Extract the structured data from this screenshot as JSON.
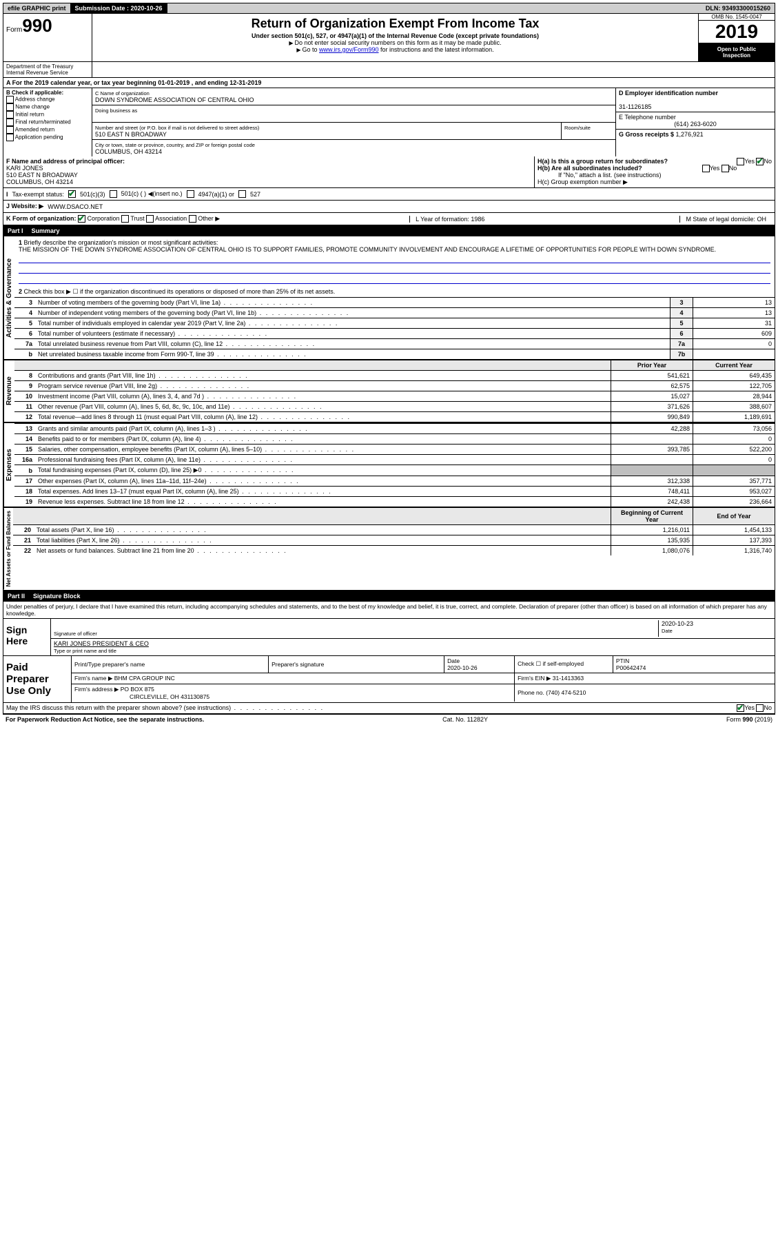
{
  "topbar": {
    "efile": "efile GRAPHIC print",
    "submission_label": "Submission Date : 2020-10-26",
    "dln": "DLN: 93493300015260"
  },
  "header": {
    "form_prefix": "Form",
    "form_number": "990",
    "title": "Return of Organization Exempt From Income Tax",
    "subtitle": "Under section 501(c), 527, or 4947(a)(1) of the Internal Revenue Code (except private foundations)",
    "note1": "Do not enter social security numbers on this form as it may be made public.",
    "note2_pre": "Go to ",
    "note2_link": "www.irs.gov/Form990",
    "note2_post": " for instructions and the latest information.",
    "omb": "OMB No. 1545-0047",
    "year": "2019",
    "inspect1": "Open to Public",
    "inspect2": "Inspection",
    "dept1": "Department of the Treasury",
    "dept2": "Internal Revenue Service"
  },
  "lineA": "For the 2019 calendar year, or tax year beginning 01-01-2019   , and ending 12-31-2019",
  "sectionB": {
    "title": "B Check if applicable:",
    "items": [
      "Address change",
      "Name change",
      "Initial return",
      "Final return/terminated",
      "Amended return",
      "Application pending"
    ]
  },
  "sectionC": {
    "name_label": "C Name of organization",
    "name": "DOWN SYNDROME ASSOCIATION OF CENTRAL OHIO",
    "dba_label": "Doing business as",
    "addr_label": "Number and street (or P.O. box if mail is not delivered to street address)",
    "room_label": "Room/suite",
    "addr": "510 EAST N BROADWAY",
    "city_label": "City or town, state or province, country, and ZIP or foreign postal code",
    "city": "COLUMBUS, OH  43214"
  },
  "sectionD": {
    "label": "D Employer identification number",
    "ein": "31-1126185",
    "phone_label": "E Telephone number",
    "phone": "(614) 263-6020",
    "gross_label": "G Gross receipts $ ",
    "gross": "1,276,921"
  },
  "sectionF": {
    "label": "F  Name and address of principal officer:",
    "name": "KARI JONES",
    "addr1": "510 EAST N BROADWAY",
    "addr2": "COLUMBUS, OH  43214"
  },
  "sectionH": {
    "ha": "H(a)  Is this a group return for subordinates?",
    "hb": "H(b)  Are all subordinates included?",
    "hb_note": "If \"No,\" attach a list. (see instructions)",
    "hc": "H(c)  Group exemption number ▶",
    "yes": "Yes",
    "no": "No"
  },
  "taxExempt": {
    "label": "Tax-exempt status:",
    "opt1": "501(c)(3)",
    "opt2": "501(c) (  ) ◀(insert no.)",
    "opt3": "4947(a)(1) or",
    "opt4": "527"
  },
  "sectionJ": {
    "label": "J  Website: ▶",
    "value": "WWW.DSACO.NET"
  },
  "sectionK": {
    "label": "K Form of organization:",
    "opts": [
      "Corporation",
      "Trust",
      "Association",
      "Other ▶"
    ],
    "L": "L Year of formation: 1986",
    "M": "M State of legal domicile: OH"
  },
  "part1": {
    "label": "Part I",
    "title": "Summary"
  },
  "governance": {
    "vert": "Activities & Governance",
    "l1": "Briefly describe the organization's mission or most significant activities:",
    "mission": "THE MISSION OF THE DOWN SYNDROME ASSOCIATION OF CENTRAL OHIO IS TO SUPPORT FAMILIES, PROMOTE COMMUNITY INVOLVEMENT AND ENCOURAGE A LIFETIME OF OPPORTUNITIES FOR PEOPLE WITH DOWN SYNDROME.",
    "l2": "Check this box ▶ ☐  if the organization discontinued its operations or disposed of more than 25% of its net assets.",
    "rows": [
      {
        "n": "3",
        "t": "Number of voting members of the governing body (Part VI, line 1a)",
        "b": "3",
        "v": "13"
      },
      {
        "n": "4",
        "t": "Number of independent voting members of the governing body (Part VI, line 1b)",
        "b": "4",
        "v": "13"
      },
      {
        "n": "5",
        "t": "Total number of individuals employed in calendar year 2019 (Part V, line 2a)",
        "b": "5",
        "v": "31"
      },
      {
        "n": "6",
        "t": "Total number of volunteers (estimate if necessary)",
        "b": "6",
        "v": "609"
      },
      {
        "n": "7a",
        "t": "Total unrelated business revenue from Part VIII, column (C), line 12",
        "b": "7a",
        "v": "0"
      },
      {
        "n": "b",
        "t": "Net unrelated business taxable income from Form 990-T, line 39",
        "b": "7b",
        "v": ""
      }
    ]
  },
  "revenue": {
    "vert": "Revenue",
    "hdr_prior": "Prior Year",
    "hdr_curr": "Current Year",
    "rows": [
      {
        "n": "8",
        "t": "Contributions and grants (Part VIII, line 1h)",
        "p": "541,621",
        "c": "649,435"
      },
      {
        "n": "9",
        "t": "Program service revenue (Part VIII, line 2g)",
        "p": "62,575",
        "c": "122,705"
      },
      {
        "n": "10",
        "t": "Investment income (Part VIII, column (A), lines 3, 4, and 7d )",
        "p": "15,027",
        "c": "28,944"
      },
      {
        "n": "11",
        "t": "Other revenue (Part VIII, column (A), lines 5, 6d, 8c, 9c, 10c, and 11e)",
        "p": "371,626",
        "c": "388,607"
      },
      {
        "n": "12",
        "t": "Total revenue—add lines 8 through 11 (must equal Part VIII, column (A), line 12)",
        "p": "990,849",
        "c": "1,189,691"
      }
    ]
  },
  "expenses": {
    "vert": "Expenses",
    "rows": [
      {
        "n": "13",
        "t": "Grants and similar amounts paid (Part IX, column (A), lines 1–3 )",
        "p": "42,288",
        "c": "73,056"
      },
      {
        "n": "14",
        "t": "Benefits paid to or for members (Part IX, column (A), line 4)",
        "p": "",
        "c": "0"
      },
      {
        "n": "15",
        "t": "Salaries, other compensation, employee benefits (Part IX, column (A), lines 5–10)",
        "p": "393,785",
        "c": "522,200"
      },
      {
        "n": "16a",
        "t": "Professional fundraising fees (Part IX, column (A), line 11e)",
        "p": "",
        "c": "0"
      },
      {
        "n": "b",
        "t": "Total fundraising expenses (Part IX, column (D), line 25) ▶0",
        "p": "shade",
        "c": "shade"
      },
      {
        "n": "17",
        "t": "Other expenses (Part IX, column (A), lines 11a–11d, 11f–24e)",
        "p": "312,338",
        "c": "357,771"
      },
      {
        "n": "18",
        "t": "Total expenses. Add lines 13–17 (must equal Part IX, column (A), line 25)",
        "p": "748,411",
        "c": "953,027"
      },
      {
        "n": "19",
        "t": "Revenue less expenses. Subtract line 18 from line 12",
        "p": "242,438",
        "c": "236,664"
      }
    ]
  },
  "netassets": {
    "vert": "Net Assets or Fund Balances",
    "hdr_beg": "Beginning of Current Year",
    "hdr_end": "End of Year",
    "rows": [
      {
        "n": "20",
        "t": "Total assets (Part X, line 16)",
        "p": "1,216,011",
        "c": "1,454,133"
      },
      {
        "n": "21",
        "t": "Total liabilities (Part X, line 26)",
        "p": "135,935",
        "c": "137,393"
      },
      {
        "n": "22",
        "t": "Net assets or fund balances. Subtract line 21 from line 20",
        "p": "1,080,076",
        "c": "1,316,740"
      }
    ]
  },
  "part2": {
    "label": "Part II",
    "title": "Signature Block"
  },
  "sigtext": "Under penalties of perjury, I declare that I have examined this return, including accompanying schedules and statements, and to the best of my knowledge and belief, it is true, correct, and complete. Declaration of preparer (other than officer) is based on all information of which preparer has any knowledge.",
  "sign": {
    "label": "Sign Here",
    "sig_officer": "Signature of officer",
    "date": "2020-10-23",
    "date_label": "Date",
    "name": "KARI JONES PRESIDENT & CEO",
    "name_label": "Type or print name and title"
  },
  "preparer": {
    "label": "Paid Preparer Use Only",
    "h1": "Print/Type preparer's name",
    "h2": "Preparer's signature",
    "h3_label": "Date",
    "h3": "2020-10-26",
    "h4_label": "Check ☐ if self-employed",
    "h5_label": "PTIN",
    "h5": "P00642474",
    "firm_label": "Firm's name    ▶",
    "firm": "BHM CPA GROUP INC",
    "ein_label": "Firm's EIN ▶",
    "ein": "31-1413363",
    "addr_label": "Firm's address ▶",
    "addr1": "PO BOX 875",
    "addr2": "CIRCLEVILLE, OH  431130875",
    "phone_label": "Phone no.",
    "phone": "(740) 474-5210"
  },
  "discuss": "May the IRS discuss this return with the preparer shown above? (see instructions)",
  "footer": {
    "left": "For Paperwork Reduction Act Notice, see the separate instructions.",
    "mid": "Cat. No. 11282Y",
    "right": "Form 990 (2019)"
  }
}
